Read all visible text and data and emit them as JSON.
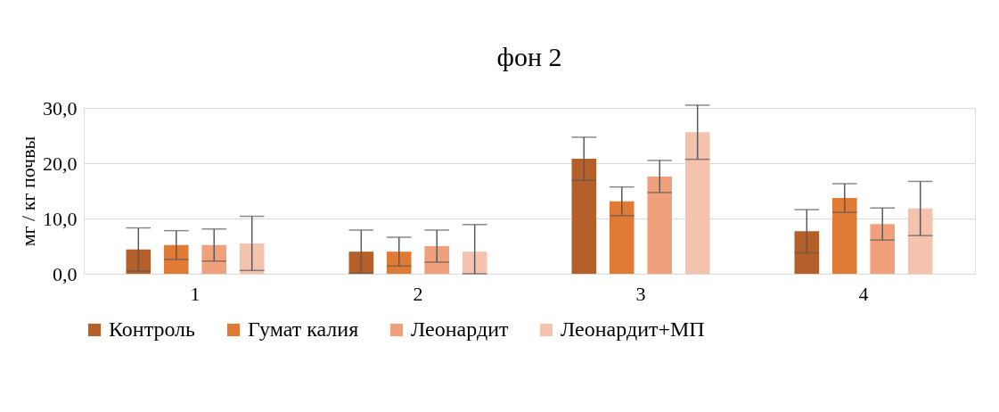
{
  "chart_data": {
    "type": "bar",
    "title": "фон 2",
    "ylabel": "мг / кг почвы",
    "categories": [
      "1",
      "2",
      "3",
      "4"
    ],
    "series": [
      {
        "name": "Контроль",
        "color": "#b5602a",
        "values": [
          4.4,
          4.0,
          20.8,
          7.7
        ],
        "errors": [
          3.9,
          3.9,
          3.9,
          3.9
        ]
      },
      {
        "name": "Гумат калия",
        "color": "#e07b35",
        "values": [
          5.2,
          4.0,
          13.1,
          13.7
        ],
        "errors": [
          2.6,
          2.6,
          2.6,
          2.6
        ]
      },
      {
        "name": "Леонардит",
        "color": "#f0a07a",
        "values": [
          5.2,
          5.0,
          17.6,
          9.0
        ],
        "errors": [
          2.9,
          2.9,
          2.9,
          2.9
        ]
      },
      {
        "name": "Леонардит+МП",
        "color": "#f5c2ae",
        "values": [
          5.5,
          4.0,
          25.6,
          11.8
        ],
        "errors": [
          4.9,
          [
            0.0,
            8.9
          ],
          4.9,
          4.9
        ]
      }
    ],
    "ylim": [
      0,
      30
    ],
    "yticks": [
      {
        "value": 0,
        "label": "0,0"
      },
      {
        "value": 10,
        "label": "10,0"
      },
      {
        "value": 20,
        "label": "20,0"
      },
      {
        "value": 30,
        "label": "30,0"
      }
    ],
    "grid": "y",
    "legend": "bottom"
  }
}
